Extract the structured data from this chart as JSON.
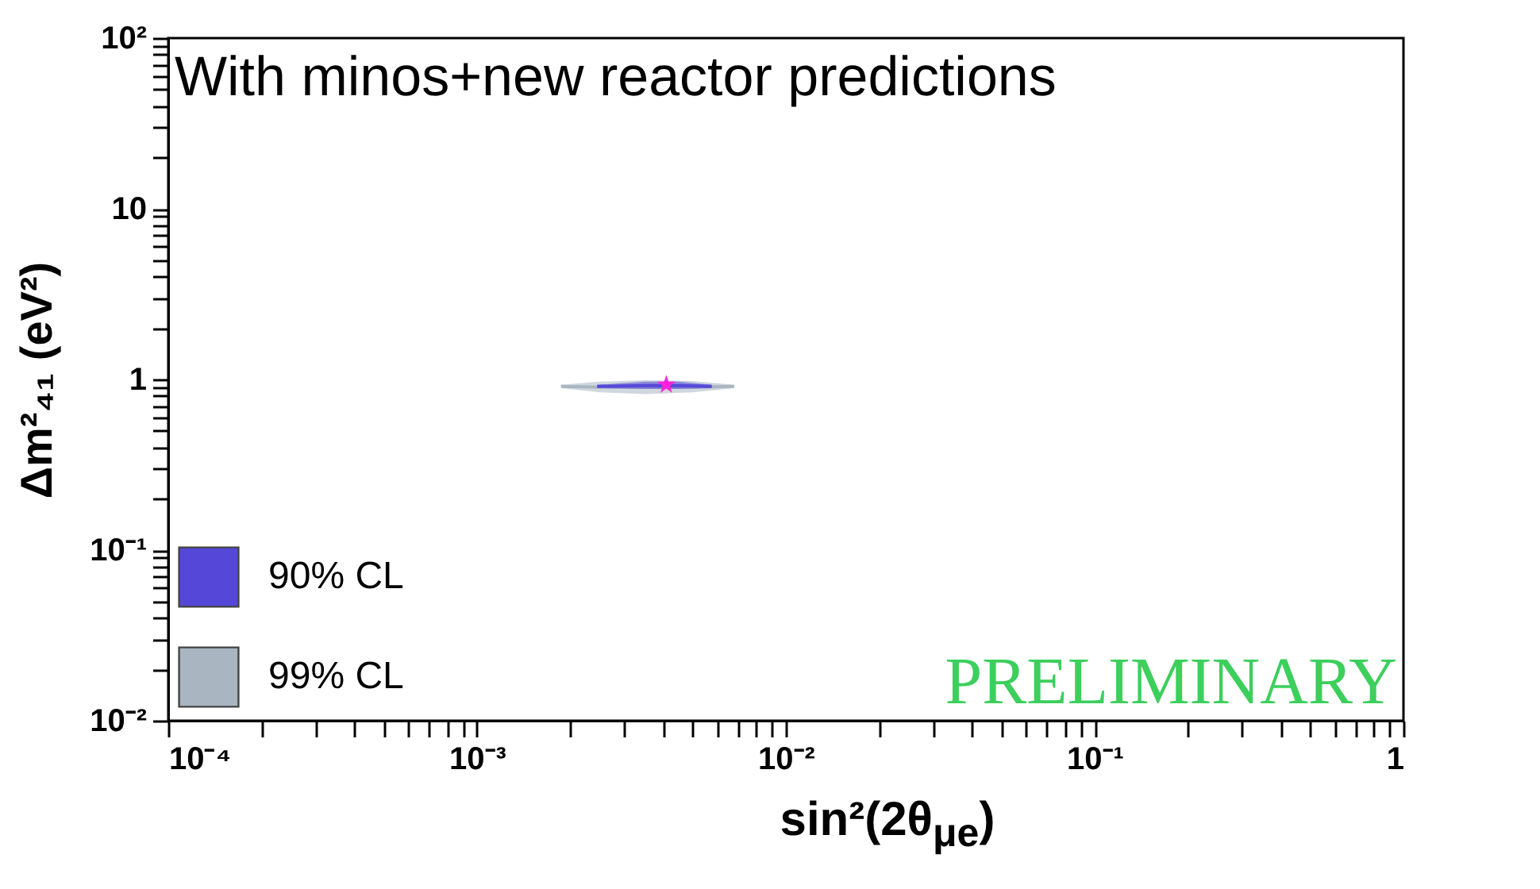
{
  "chart_data": {
    "type": "line",
    "xlabel": "sin²(2θ$_{μe}$)",
    "ylabel": "Δm²₄₁ (eV²)",
    "annotations": [
      "With minos+new reactor predictions",
      "PRELIMINARY"
    ],
    "log": "xy",
    "grid": false,
    "legend": "bottom left",
    "xlim": [
      0.0001,
      1
    ],
    "ylim": [
      0.01,
      100
    ],
    "xticks": [
      {
        "value": 0.0001,
        "label": "10⁻⁴"
      },
      {
        "value": 0.0002,
        "label": null
      },
      {
        "value": 0.0003,
        "label": null
      },
      {
        "value": 0.0004,
        "label": null
      },
      {
        "value": 0.0005,
        "label": null
      },
      {
        "value": 0.0006,
        "label": null
      },
      {
        "value": 0.0007,
        "label": null
      },
      {
        "value": 0.0008,
        "label": null
      },
      {
        "value": 0.0009,
        "label": null
      },
      {
        "value": 0.001,
        "label": "10⁻³"
      },
      {
        "value": 0.002,
        "label": null
      },
      {
        "value": 0.003,
        "label": null
      },
      {
        "value": 0.004,
        "label": null
      },
      {
        "value": 0.005,
        "label": null
      },
      {
        "value": 0.006,
        "label": null
      },
      {
        "value": 0.007,
        "label": null
      },
      {
        "value": 0.008,
        "label": null
      },
      {
        "value": 0.009,
        "label": null
      },
      {
        "value": 0.01,
        "label": "10⁻²"
      },
      {
        "value": 0.02,
        "label": null
      },
      {
        "value": 0.03,
        "label": null
      },
      {
        "value": 0.04,
        "label": null
      },
      {
        "value": 0.05,
        "label": null
      },
      {
        "value": 0.06,
        "label": null
      },
      {
        "value": 0.07,
        "label": null
      },
      {
        "value": 0.08,
        "label": null
      },
      {
        "value": 0.09,
        "label": null
      },
      {
        "value": 0.1,
        "label": "10⁻¹"
      },
      {
        "value": 0.2,
        "label": null
      },
      {
        "value": 0.3,
        "label": null
      },
      {
        "value": 0.4,
        "label": null
      },
      {
        "value": 0.5,
        "label": null
      },
      {
        "value": 0.6,
        "label": null
      },
      {
        "value": 0.7,
        "label": null
      },
      {
        "value": 0.8,
        "label": null
      },
      {
        "value": 0.9,
        "label": null
      },
      1
    ],
    "yticks": [
      {
        "value": 0.01,
        "label": "10⁻²"
      },
      {
        "value": 0.02,
        "label": null
      },
      {
        "value": 0.03,
        "label": null
      },
      {
        "value": 0.04,
        "label": null
      },
      {
        "value": 0.05,
        "label": null
      },
      {
        "value": 0.06,
        "label": null
      },
      {
        "value": 0.07,
        "label": null
      },
      {
        "value": 0.08,
        "label": null
      },
      {
        "value": 0.09,
        "label": null
      },
      {
        "value": 0.1,
        "label": "10⁻¹"
      },
      {
        "value": 0.2,
        "label": null
      },
      {
        "value": 0.3,
        "label": null
      },
      {
        "value": 0.4,
        "label": null
      },
      {
        "value": 0.5,
        "label": null
      },
      {
        "value": 0.6,
        "label": null
      },
      {
        "value": 0.7,
        "label": null
      },
      {
        "value": 0.8,
        "label": null
      },
      {
        "value": 0.9,
        "label": null
      },
      1,
      {
        "value": 2,
        "label": null
      },
      {
        "value": 3,
        "label": null
      },
      {
        "value": 4,
        "label": null
      },
      {
        "value": 5,
        "label": null
      },
      {
        "value": 6,
        "label": null
      },
      {
        "value": 7,
        "label": null
      },
      {
        "value": 8,
        "label": null
      },
      {
        "value": 9,
        "label": null
      },
      10,
      {
        "value": 20,
        "label": null
      },
      {
        "value": 30,
        "label": null
      },
      {
        "value": 40,
        "label": null
      },
      {
        "value": 50,
        "label": null
      },
      {
        "value": 60,
        "label": null
      },
      {
        "value": 70,
        "label": null
      },
      {
        "value": 80,
        "label": null
      },
      {
        "value": 90,
        "label": null
      },
      {
        "value": 100,
        "label": "10²"
      }
    ],
    "series": [
      {
        "name": "90% CL",
        "color": "#5548d9",
        "x": [
          0.00245,
          0.0035,
          0.0045,
          0.00575
        ],
        "values": [
          0.91,
          0.92,
          0.92,
          0.91
        ],
        "lower": [
          0.89,
          0.88,
          0.88,
          0.89
        ],
        "upper": [
          0.93,
          0.97,
          0.97,
          0.93
        ]
      },
      {
        "name": "99% CL",
        "color": "#a9b6c2",
        "x": [
          0.00187,
          0.0025,
          0.0035,
          0.005,
          0.0068
        ],
        "values": [
          0.91,
          0.9,
          0.9,
          0.9,
          0.91
        ],
        "lower": [
          0.89,
          0.84,
          0.82,
          0.84,
          0.89
        ],
        "upper": [
          0.93,
          0.97,
          0.99,
          0.98,
          0.93
        ]
      },
      {
        "type": "scatter",
        "color": "#ff22dd",
        "marker": "star",
        "x": [
          0.0041
        ],
        "values": [
          0.93
        ]
      }
    ]
  }
}
